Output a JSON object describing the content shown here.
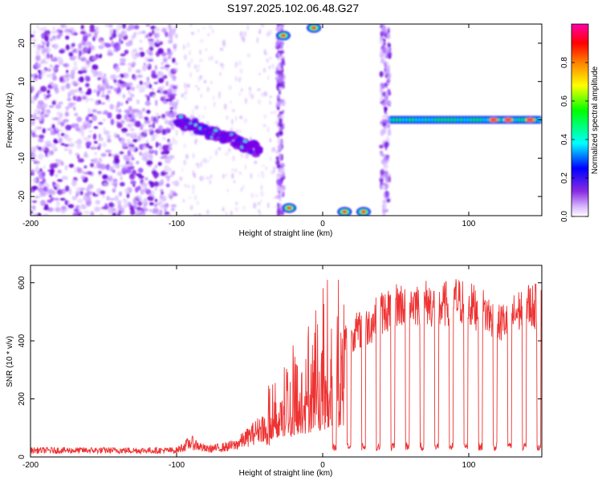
{
  "title": "S197.2025.102.06.48.G27",
  "chart_data": [
    {
      "type": "heatmap",
      "xlabel": "Height of straight line (km)",
      "ylabel": "Frequency (Hz)",
      "xlim": [
        -200,
        150
      ],
      "ylim": [
        -25,
        25
      ],
      "xticks": [
        -200,
        -100,
        0,
        100
      ],
      "yticks": [
        -20,
        -10,
        0,
        10,
        20
      ],
      "colorbar": {
        "label": "Normalized spectral amplitude",
        "range": [
          0,
          1
        ],
        "ticks": [
          0.0,
          0.2,
          0.4,
          0.6,
          0.8
        ],
        "tick_labels": [
          "0.0",
          "0.2",
          "0.4",
          "0.6",
          "0.8"
        ],
        "colors": [
          "#ffffff",
          "#d9b8ff",
          "#8a2be2",
          "#0000ff",
          "#00ffff",
          "#00ff00",
          "#ffff00",
          "#ff8000",
          "#ff0000",
          "#ff00aa"
        ]
      },
      "features": {
        "noise_region_km": [
          -200,
          -105
        ],
        "descending_tone": {
          "start": [
            -100,
            0
          ],
          "end": [
            -43,
            -8
          ]
        },
        "steady_tone_hz": 0,
        "steady_tone_start_km": 47,
        "gap_region_km": [
          -30,
          45
        ],
        "low_band_bursts": [
          [
            -23,
            -23
          ],
          [
            15,
            -24
          ],
          [
            28,
            -24
          ]
        ],
        "high_band_bursts": [
          [
            -27,
            22
          ],
          [
            -6,
            24
          ]
        ],
        "red_peaks_km": [
          117,
          127,
          142
        ]
      }
    },
    {
      "type": "line",
      "xlabel": "Height of straight line (km)",
      "ylabel": "SNR (10 * v/v)",
      "xlim": [
        -200,
        150
      ],
      "ylim": [
        0,
        660
      ],
      "xticks": [
        -200,
        -100,
        0,
        100
      ],
      "yticks": [
        0,
        200,
        400,
        600
      ],
      "color": "#ee3333",
      "envelope": {
        "x": [
          -200,
          -100,
          -90,
          -80,
          -70,
          -60,
          -50,
          -40,
          -30,
          -20,
          -10,
          0,
          10,
          20,
          30,
          40,
          50,
          60,
          70,
          80,
          90,
          100,
          110,
          120,
          130,
          140,
          150
        ],
        "y": [
          25,
          25,
          55,
          30,
          35,
          45,
          80,
          120,
          230,
          270,
          330,
          370,
          400,
          440,
          460,
          510,
          540,
          545,
          550,
          530,
          560,
          540,
          520,
          470,
          500,
          540,
          530
        ]
      },
      "dips_km": [
        8,
        18,
        28,
        38,
        48,
        58,
        68,
        78,
        88,
        98,
        108,
        118,
        128,
        138,
        148
      ],
      "dip_level": 35
    }
  ]
}
